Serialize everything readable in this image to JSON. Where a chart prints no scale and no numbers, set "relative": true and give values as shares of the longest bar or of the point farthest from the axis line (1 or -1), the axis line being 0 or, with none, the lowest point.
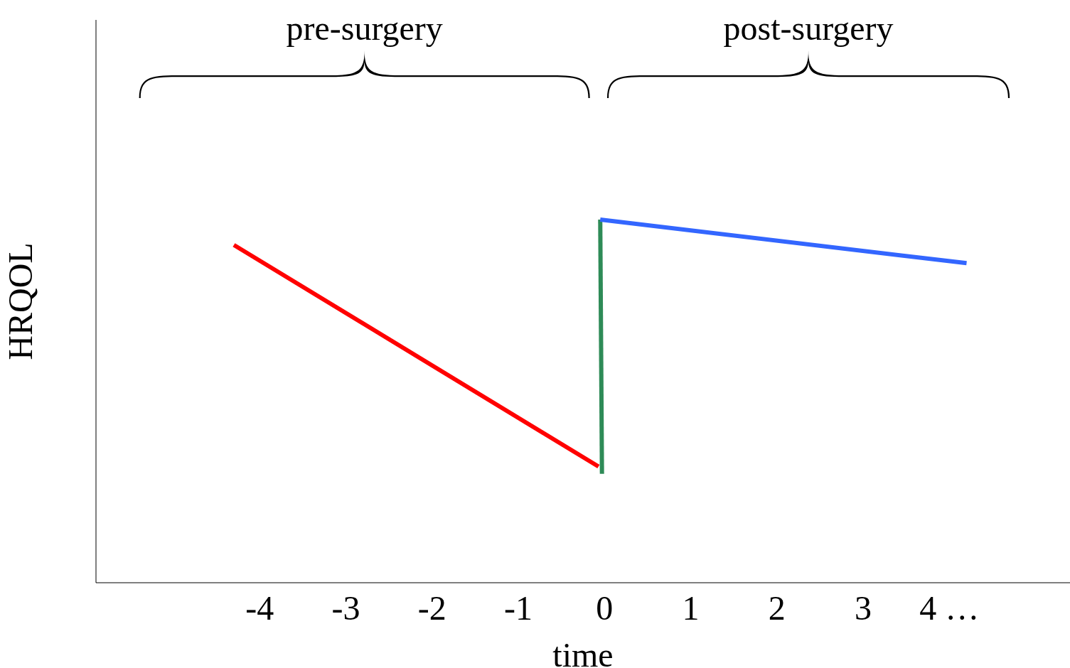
{
  "chart_data": {
    "type": "line",
    "relative": true,
    "xlabel": "time",
    "ylabel": "HRQOL",
    "annotations": [
      "pre-surgery",
      "post-surgery"
    ],
    "xlim": [
      -5.9,
      5.4
    ],
    "xticks": [
      -4,
      -3,
      -2,
      -1,
      0,
      1,
      2,
      3,
      {
        "value": 4,
        "label": "4 …"
      }
    ],
    "series": [
      {
        "color": "#ff0000",
        "x": [
          -4.3,
          -0.07
        ],
        "values": [
          0.93,
          0.32
        ]
      },
      {
        "color": "#2e8b57",
        "x": [
          -0.05,
          -0.03
        ],
        "values": [
          1.0,
          0.3
        ]
      },
      {
        "color": "#3366ff",
        "x": [
          -0.05,
          4.2
        ],
        "values": [
          1.0,
          0.88
        ]
      }
    ]
  }
}
